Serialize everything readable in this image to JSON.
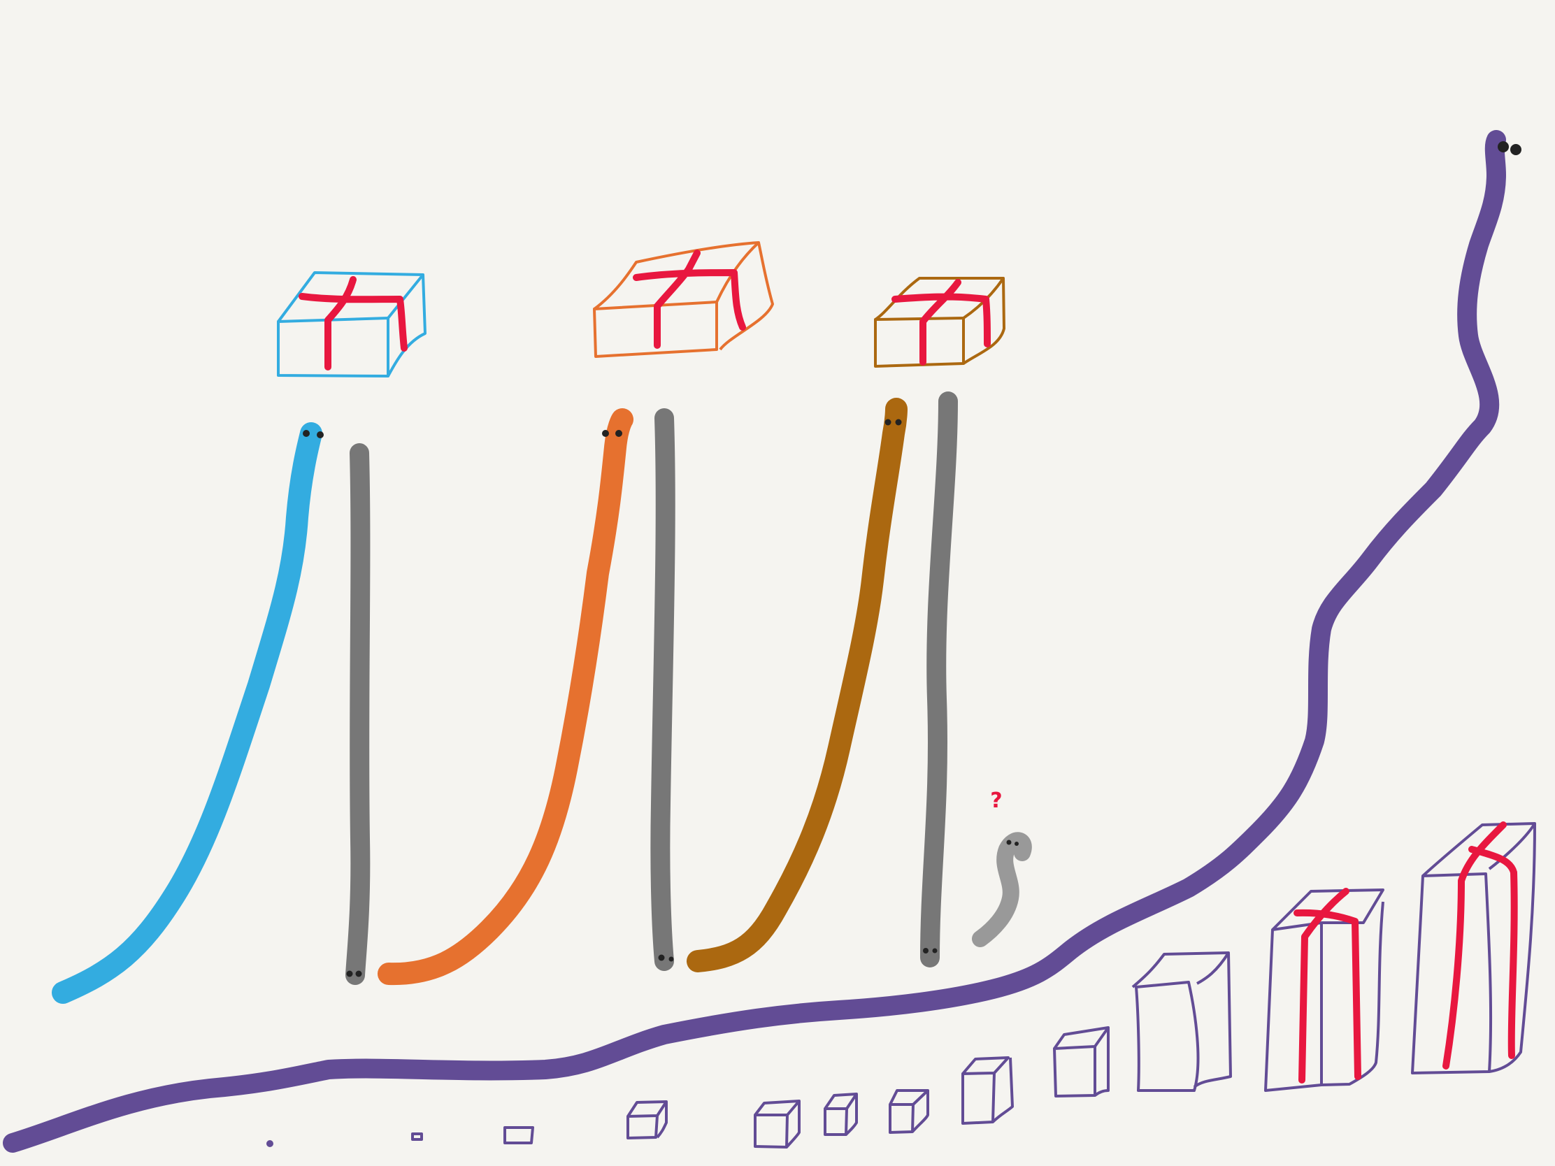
{
  "colors": {
    "background": "#f5f4f0",
    "blue": "#33ace0",
    "orange": "#e6712f",
    "brown": "#ab6810",
    "gray": "#777777",
    "light_gray": "#999999",
    "purple": "#624c95",
    "ribbon_red": "#e8173f",
    "eye": "#222222"
  },
  "annotation": {
    "question_mark": "?"
  }
}
